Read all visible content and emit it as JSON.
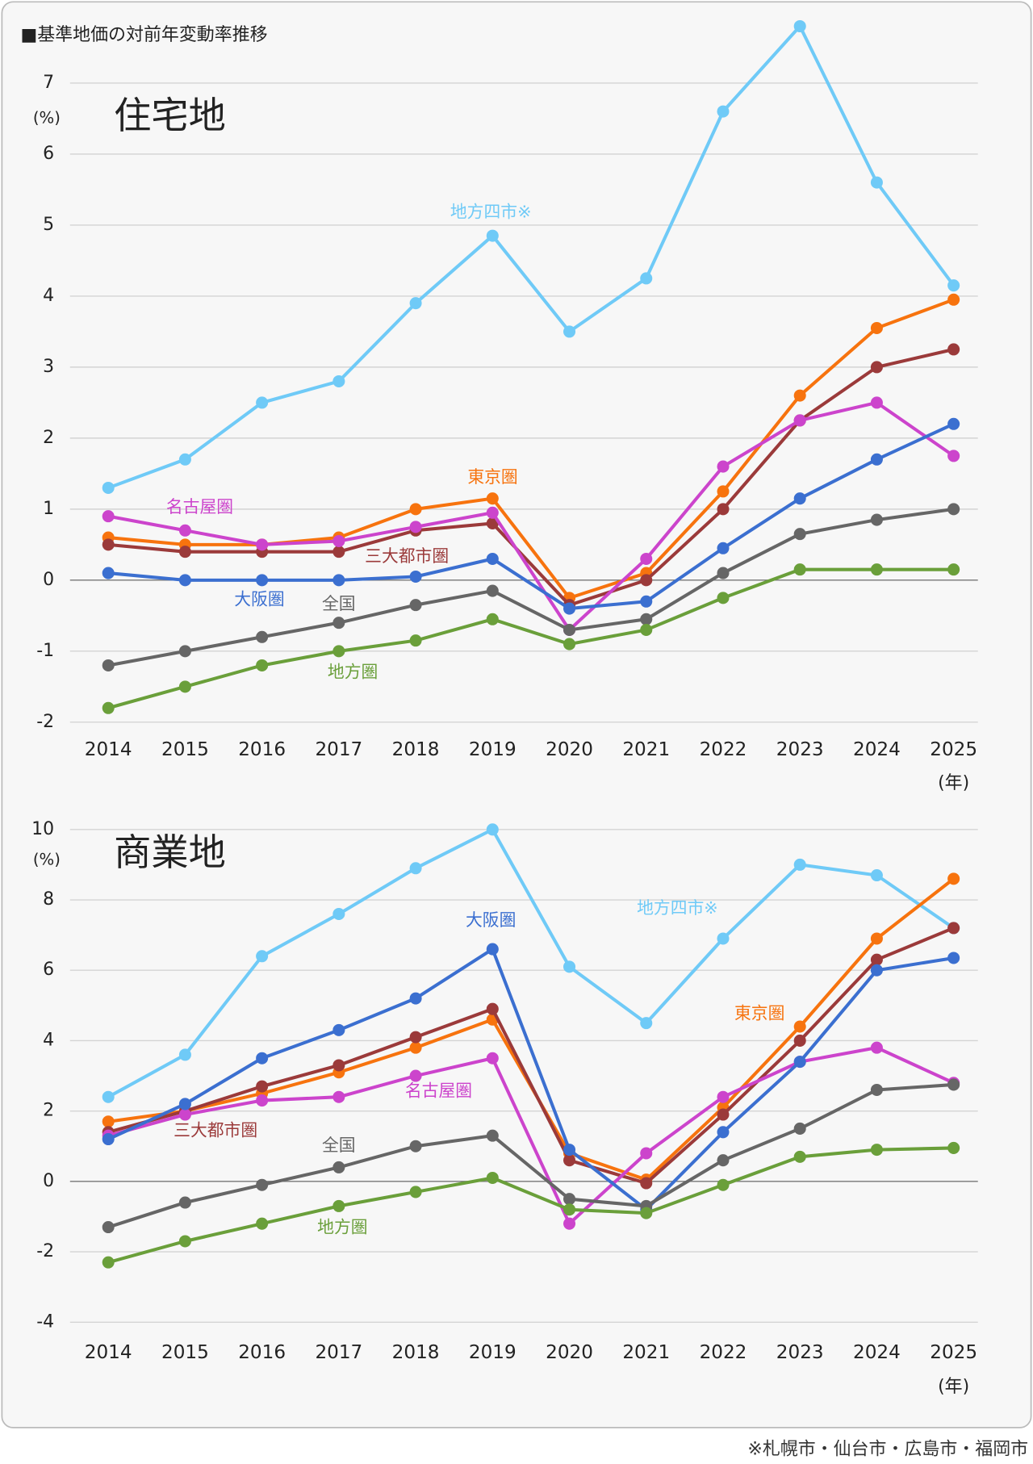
{
  "title": "■基準地価の対前年変動率推移",
  "footnote": "※札幌市・仙台市・広島市・福岡市",
  "chart_data": [
    {
      "type": "line",
      "title": "住宅地",
      "y_unit": "(%)",
      "x_unit": "(年)",
      "categories": [
        "2014",
        "2015",
        "2016",
        "2017",
        "2018",
        "2019",
        "2020",
        "2021",
        "2022",
        "2023",
        "2024",
        "2025"
      ],
      "ylim": [
        -2,
        7
      ],
      "yticks": [
        -2,
        -1,
        0,
        1,
        2,
        3,
        4,
        5,
        6,
        7
      ],
      "grid": true,
      "series": [
        {
          "name": "地方四市※",
          "color": "#6fcaf7",
          "values": [
            1.3,
            1.7,
            2.5,
            2.8,
            3.9,
            4.85,
            3.5,
            4.25,
            6.6,
            7.8,
            5.6,
            4.15
          ]
        },
        {
          "name": "東京圏",
          "color": "#f7730e",
          "values": [
            0.6,
            0.5,
            0.5,
            0.6,
            1.0,
            1.15,
            -0.25,
            0.1,
            1.25,
            2.6,
            3.55,
            3.95
          ]
        },
        {
          "name": "三大都市圏",
          "color": "#9b3a3a",
          "values": [
            0.5,
            0.4,
            0.4,
            0.4,
            0.7,
            0.8,
            -0.35,
            0.0,
            1.0,
            2.25,
            3.0,
            3.25
          ]
        },
        {
          "name": "名古屋圏",
          "color": "#cc44cc",
          "values": [
            0.9,
            0.7,
            0.5,
            0.55,
            0.75,
            0.95,
            -0.7,
            0.3,
            1.6,
            2.25,
            2.5,
            1.75
          ]
        },
        {
          "name": "大阪圏",
          "color": "#3b6fd0",
          "values": [
            0.1,
            0.0,
            0.0,
            0.0,
            0.05,
            0.3,
            -0.4,
            -0.3,
            0.45,
            1.15,
            1.7,
            2.2
          ]
        },
        {
          "name": "全国",
          "color": "#666666",
          "values": [
            -1.2,
            -1.0,
            -0.8,
            -0.6,
            -0.35,
            -0.15,
            -0.7,
            -0.55,
            0.1,
            0.65,
            0.85,
            1.0
          ]
        },
        {
          "name": "地方圏",
          "color": "#6a9f3a",
          "values": [
            -1.8,
            -1.5,
            -1.2,
            -1.0,
            -0.85,
            -0.55,
            -0.9,
            -0.7,
            -0.25,
            0.15,
            0.15,
            0.15
          ]
        }
      ]
    },
    {
      "type": "line",
      "title": "商業地",
      "y_unit": "(%)",
      "x_unit": "(年)",
      "categories": [
        "2014",
        "2015",
        "2016",
        "2017",
        "2018",
        "2019",
        "2020",
        "2021",
        "2022",
        "2023",
        "2024",
        "2025"
      ],
      "ylim": [
        -4,
        10
      ],
      "yticks": [
        -4,
        -2,
        0,
        2,
        4,
        6,
        8,
        10
      ],
      "grid": true,
      "series": [
        {
          "name": "地方四市※",
          "color": "#6fcaf7",
          "values": [
            2.4,
            3.6,
            6.4,
            7.6,
            8.9,
            10.0,
            6.1,
            4.5,
            6.9,
            9.0,
            8.7,
            7.2
          ]
        },
        {
          "name": "東京圏",
          "color": "#f7730e",
          "values": [
            1.7,
            2.0,
            2.5,
            3.1,
            3.8,
            4.6,
            0.8,
            0.05,
            2.1,
            4.4,
            6.9,
            8.6
          ]
        },
        {
          "name": "三大都市圏",
          "color": "#9b3a3a",
          "values": [
            1.4,
            2.0,
            2.7,
            3.3,
            4.1,
            4.9,
            0.6,
            -0.05,
            1.9,
            4.0,
            6.3,
            7.2
          ]
        },
        {
          "name": "名古屋圏",
          "color": "#cc44cc",
          "values": [
            1.3,
            1.9,
            2.3,
            2.4,
            3.0,
            3.5,
            -1.2,
            0.8,
            2.4,
            3.4,
            3.8,
            2.8
          ]
        },
        {
          "name": "大阪圏",
          "color": "#3b6fd0",
          "values": [
            1.2,
            2.2,
            3.5,
            4.3,
            5.2,
            6.6,
            0.9,
            -0.8,
            1.4,
            3.4,
            6.0,
            6.35
          ]
        },
        {
          "name": "全国",
          "color": "#666666",
          "values": [
            -1.3,
            -0.6,
            -0.1,
            0.4,
            1.0,
            1.3,
            -0.5,
            -0.7,
            0.6,
            1.5,
            2.6,
            2.75
          ]
        },
        {
          "name": "地方圏",
          "color": "#6a9f3a",
          "values": [
            -2.3,
            -1.7,
            -1.2,
            -0.7,
            -0.3,
            0.1,
            -0.8,
            -0.9,
            -0.1,
            0.7,
            0.9,
            0.95
          ]
        }
      ]
    }
  ]
}
